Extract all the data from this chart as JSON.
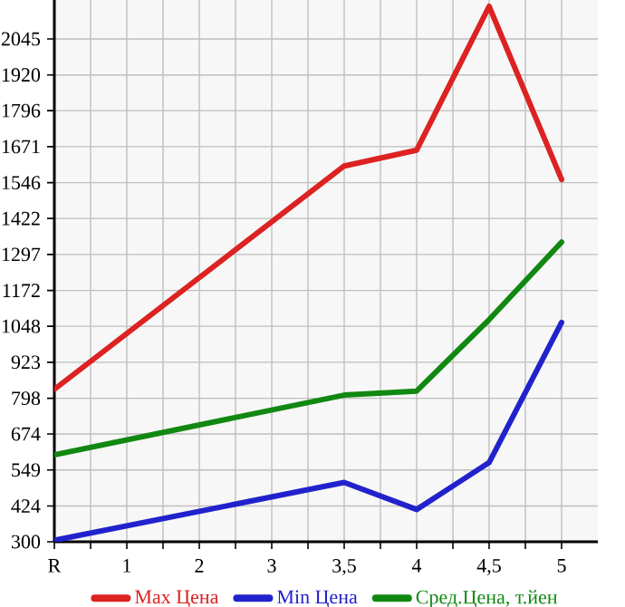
{
  "chart_data": {
    "type": "line",
    "categories": [
      "R",
      "1",
      "2",
      "3",
      "3,5",
      "4",
      "4,5",
      "5"
    ],
    "series": [
      {
        "name": "Max Цена",
        "color": "#dd2222",
        "values": [
          829,
          null,
          null,
          null,
          1604,
          1659,
          2158,
          1557
        ]
      },
      {
        "name": "Min Цена",
        "color": "#2222cc",
        "values": [
          305,
          null,
          null,
          null,
          506,
          412,
          575,
          1061
        ]
      },
      {
        "name": "Сред.Цена, т.йен",
        "color": "#118811",
        "values": [
          602,
          null,
          null,
          null,
          809,
          823,
          1071,
          1340
        ]
      }
    ],
    "ylim": [
      300,
      2180
    ],
    "yticks": [
      300,
      424,
      549,
      674,
      798,
      923,
      1048,
      1172,
      1297,
      1422,
      1546,
      1671,
      1796,
      1920,
      2045
    ],
    "grid": true,
    "legend": "bottom",
    "marker": "none",
    "line_style": "solid"
  }
}
